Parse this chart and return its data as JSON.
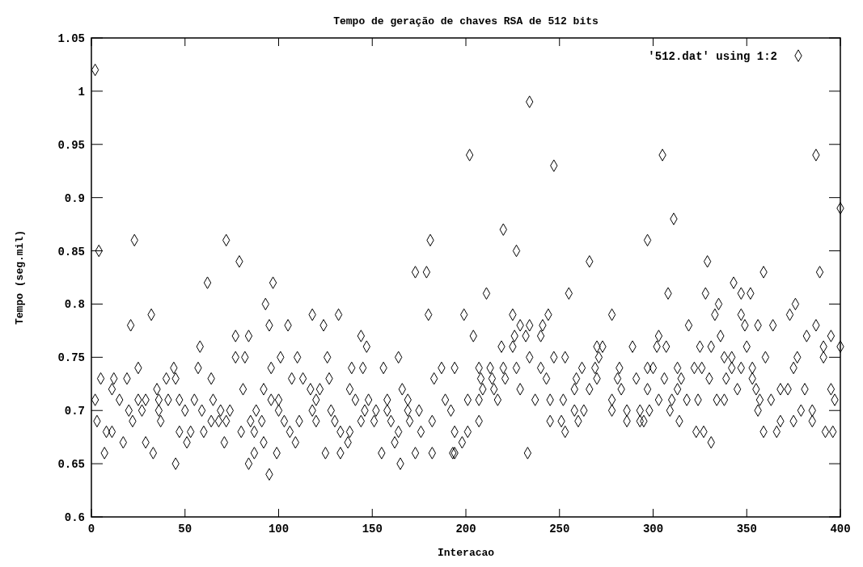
{
  "chart_data": {
    "type": "scatter",
    "title": "Tempo de geração de chaves RSA de 512 bits",
    "xlabel": "Interacao",
    "ylabel": "Tempo (seg.mil)",
    "xlim": [
      0,
      400
    ],
    "xticks": [
      0,
      50,
      100,
      150,
      200,
      250,
      300,
      350,
      400
    ],
    "ylim": [
      0.6,
      1.05
    ],
    "yticks": [
      0.6,
      0.65,
      0.7,
      0.75,
      0.8,
      0.85,
      0.9,
      0.95,
      1,
      1.05
    ],
    "grid": false,
    "legend": "top right",
    "marker": "diamond",
    "series": [
      {
        "name": "'512.dat' using 1:2",
        "color": "#000000",
        "x": [
          2,
          4,
          23,
          72,
          79,
          62,
          97,
          32,
          21,
          93,
          95,
          58,
          77,
          84,
          77,
          82,
          25,
          44,
          57,
          96,
          5,
          12,
          19,
          40,
          45,
          64,
          11,
          35,
          81,
          92,
          2,
          15,
          25,
          29,
          36,
          41,
          47,
          55,
          65,
          96,
          20,
          27,
          36,
          50,
          59,
          69,
          74,
          88,
          3,
          22,
          37,
          64,
          68,
          72,
          85,
          91,
          8,
          11,
          47,
          53,
          60,
          80,
          87,
          17,
          29,
          51,
          71,
          92,
          7,
          33,
          87,
          45,
          84,
          95,
          181,
          173,
          179,
          118,
          132,
          180,
          105,
          124,
          144,
          147,
          101,
          110,
          126,
          164,
          139,
          145,
          156,
          187,
          194,
          107,
          113,
          127,
          183,
          117,
          122,
          138,
          166,
          100,
          120,
          141,
          148,
          158,
          169,
          189,
          100,
          118,
          128,
          146,
          152,
          158,
          169,
          175,
          192,
          103,
          111,
          120,
          130,
          144,
          151,
          160,
          170,
          182,
          106,
          133,
          138,
          164,
          176,
          194,
          109,
          137,
          162,
          99,
          125,
          133,
          155,
          173,
          182,
          193,
          165,
          234,
          202,
          247,
          220,
          227,
          266,
          211,
          255,
          199,
          225,
          244,
          278,
          229,
          234,
          241,
          204,
          226,
          232,
          240,
          219,
          225,
          270,
          273,
          289,
          234,
          247,
          253,
          271,
          207,
          213,
          220,
          227,
          240,
          262,
          269,
          282,
          208,
          214,
          221,
          243,
          259,
          270,
          281,
          291,
          209,
          215,
          229,
          258,
          266,
          283,
          201,
          207,
          217,
          237,
          245,
          252,
          278,
          258,
          263,
          278,
          286,
          293,
          207,
          245,
          251,
          260,
          286,
          293,
          201,
          253,
          198,
          194,
          233,
          305,
          387,
          400,
          311,
          297,
          329,
          359,
          389,
          343,
          308,
          328,
          347,
          352,
          335,
          376,
          333,
          347,
          373,
          319,
          349,
          356,
          364,
          387,
          303,
          336,
          382,
          395,
          302,
          307,
          325,
          331,
          350,
          391,
          400,
          338,
          342,
          360,
          377,
          391,
          297,
          300,
          313,
          322,
          326,
          342,
          347,
          353,
          375,
          306,
          315,
          330,
          339,
          353,
          297,
          313,
          345,
          355,
          368,
          372,
          381,
          395,
          303,
          310,
          318,
          324,
          334,
          338,
          357,
          363,
          397,
          298,
          309,
          356,
          379,
          385,
          295,
          314,
          368,
          375,
          385,
          323,
          327,
          359,
          366,
          392,
          396,
          331
        ],
        "values": [
          1.02,
          0.85,
          0.86,
          0.86,
          0.84,
          0.82,
          0.82,
          0.79,
          0.78,
          0.8,
          0.78,
          0.76,
          0.77,
          0.77,
          0.75,
          0.75,
          0.74,
          0.74,
          0.74,
          0.74,
          0.73,
          0.73,
          0.73,
          0.73,
          0.73,
          0.73,
          0.72,
          0.72,
          0.72,
          0.72,
          0.71,
          0.71,
          0.71,
          0.71,
          0.71,
          0.71,
          0.71,
          0.71,
          0.71,
          0.71,
          0.7,
          0.7,
          0.7,
          0.7,
          0.7,
          0.7,
          0.7,
          0.7,
          0.69,
          0.69,
          0.69,
          0.69,
          0.69,
          0.69,
          0.69,
          0.69,
          0.68,
          0.68,
          0.68,
          0.68,
          0.68,
          0.68,
          0.68,
          0.67,
          0.67,
          0.67,
          0.67,
          0.67,
          0.66,
          0.66,
          0.66,
          0.65,
          0.65,
          0.64,
          0.86,
          0.83,
          0.83,
          0.79,
          0.79,
          0.79,
          0.78,
          0.78,
          0.77,
          0.76,
          0.75,
          0.75,
          0.75,
          0.75,
          0.74,
          0.74,
          0.74,
          0.74,
          0.74,
          0.73,
          0.73,
          0.73,
          0.73,
          0.72,
          0.72,
          0.72,
          0.72,
          0.71,
          0.71,
          0.71,
          0.71,
          0.71,
          0.71,
          0.71,
          0.7,
          0.7,
          0.7,
          0.7,
          0.7,
          0.7,
          0.7,
          0.7,
          0.7,
          0.69,
          0.69,
          0.69,
          0.69,
          0.69,
          0.69,
          0.69,
          0.69,
          0.69,
          0.68,
          0.68,
          0.68,
          0.68,
          0.68,
          0.68,
          0.67,
          0.67,
          0.67,
          0.66,
          0.66,
          0.66,
          0.66,
          0.66,
          0.66,
          0.66,
          0.65,
          0.99,
          0.94,
          0.93,
          0.87,
          0.85,
          0.84,
          0.81,
          0.81,
          0.79,
          0.79,
          0.79,
          0.79,
          0.78,
          0.78,
          0.78,
          0.77,
          0.77,
          0.77,
          0.77,
          0.76,
          0.76,
          0.76,
          0.76,
          0.76,
          0.75,
          0.75,
          0.75,
          0.75,
          0.74,
          0.74,
          0.74,
          0.74,
          0.74,
          0.74,
          0.74,
          0.74,
          0.73,
          0.73,
          0.73,
          0.73,
          0.73,
          0.73,
          0.73,
          0.73,
          0.72,
          0.72,
          0.72,
          0.72,
          0.72,
          0.72,
          0.71,
          0.71,
          0.71,
          0.71,
          0.71,
          0.71,
          0.71,
          0.7,
          0.7,
          0.7,
          0.7,
          0.7,
          0.69,
          0.69,
          0.69,
          0.69,
          0.69,
          0.69,
          0.68,
          0.68,
          0.67,
          0.66,
          0.66,
          0.94,
          0.94,
          0.89,
          0.88,
          0.86,
          0.84,
          0.83,
          0.83,
          0.82,
          0.81,
          0.81,
          0.81,
          0.81,
          0.8,
          0.8,
          0.79,
          0.79,
          0.79,
          0.78,
          0.78,
          0.78,
          0.78,
          0.78,
          0.77,
          0.77,
          0.77,
          0.77,
          0.76,
          0.76,
          0.76,
          0.76,
          0.76,
          0.76,
          0.76,
          0.75,
          0.75,
          0.75,
          0.75,
          0.75,
          0.74,
          0.74,
          0.74,
          0.74,
          0.74,
          0.74,
          0.74,
          0.74,
          0.74,
          0.73,
          0.73,
          0.73,
          0.73,
          0.73,
          0.72,
          0.72,
          0.72,
          0.72,
          0.72,
          0.72,
          0.72,
          0.72,
          0.71,
          0.71,
          0.71,
          0.71,
          0.71,
          0.71,
          0.71,
          0.71,
          0.71,
          0.7,
          0.7,
          0.7,
          0.7,
          0.7,
          0.69,
          0.69,
          0.69,
          0.69,
          0.69,
          0.68,
          0.68,
          0.68,
          0.68,
          0.68,
          0.68,
          0.67
        ]
      }
    ]
  }
}
